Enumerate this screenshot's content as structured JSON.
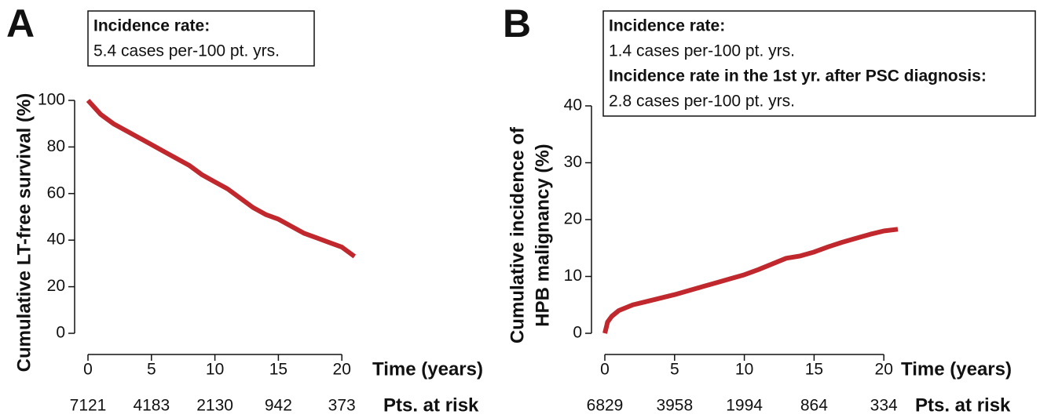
{
  "chart_data": [
    {
      "type": "line",
      "panel": "A",
      "annotations": [
        {
          "text": "Incidence rate:",
          "bold": true
        },
        {
          "text": "5.4 cases per-100 pt. yrs.",
          "bold": false
        }
      ],
      "y_label": [
        "Cumulative LT-free survival (%)"
      ],
      "x_label": "Time (years)",
      "x": [
        0,
        1,
        2,
        3,
        4,
        5,
        6,
        7,
        8,
        9,
        10,
        11,
        12,
        13,
        14,
        15,
        16,
        17,
        18,
        19,
        20,
        21
      ],
      "series": [
        {
          "color": "#c0282d",
          "values": [
            100,
            94,
            90,
            87,
            84,
            81,
            78,
            75,
            72,
            68,
            65,
            62,
            58,
            54,
            51,
            49,
            46,
            43,
            41,
            39,
            37,
            33
          ]
        }
      ],
      "xlim": [
        0,
        25
      ],
      "ylim": [
        0,
        100
      ],
      "xticks": [
        0,
        5,
        10,
        15,
        20
      ],
      "yticks": [
        0,
        20,
        40,
        60,
        80,
        100
      ],
      "at_risk": {
        "label": "Pts. at risk",
        "x": [
          0,
          5,
          10,
          15,
          20
        ],
        "values": [
          7121,
          4183,
          2130,
          942,
          373
        ]
      }
    },
    {
      "type": "line",
      "panel": "B",
      "annotations": [
        {
          "text": "Incidence rate:",
          "bold": true
        },
        {
          "text": "1.4 cases per-100 pt. yrs.",
          "bold": false
        },
        {
          "text": "Incidence rate in the 1st yr. after PSC diagnosis:",
          "bold": true
        },
        {
          "text": "2.8 cases per-100 pt. yrs.",
          "bold": false
        }
      ],
      "y_label": [
        "Cumulative incidence of",
        "HPB malignancy (%)"
      ],
      "x_label": "Time (years)",
      "x": [
        0,
        0.2,
        0.5,
        1,
        2,
        3,
        4,
        5,
        6,
        7,
        8,
        9,
        10,
        11,
        12,
        13,
        14,
        15,
        16,
        17,
        18,
        19,
        20,
        21
      ],
      "series": [
        {
          "color": "#c0282d",
          "values": [
            0,
            2,
            3,
            4,
            5,
            5.6,
            6.2,
            6.8,
            7.5,
            8.2,
            8.9,
            9.6,
            10.3,
            11.2,
            12.2,
            13.2,
            13.6,
            14.3,
            15.2,
            16,
            16.7,
            17.4,
            18,
            18.3
          ]
        }
      ],
      "xlim": [
        0,
        25
      ],
      "ylim": [
        0,
        40
      ],
      "xticks": [
        0,
        5,
        10,
        15,
        20
      ],
      "yticks": [
        0,
        10,
        20,
        30,
        40
      ],
      "at_risk": {
        "label": "Pts. at risk",
        "x": [
          0,
          5,
          10,
          15,
          20
        ],
        "values": [
          6829,
          3958,
          1994,
          864,
          334
        ]
      }
    }
  ]
}
